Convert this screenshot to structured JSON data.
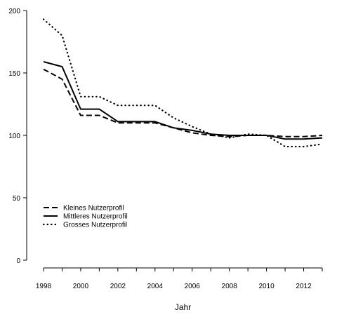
{
  "chart_data": {
    "type": "line",
    "title": "",
    "xlabel": "Jahr",
    "ylabel": "",
    "xlim": [
      1998,
      2013
    ],
    "ylim": [
      0,
      200
    ],
    "x_ticks": [
      1998,
      2000,
      2002,
      2004,
      2006,
      2008,
      2010,
      2012
    ],
    "y_ticks": [
      0,
      50,
      100,
      150,
      200
    ],
    "grid": false,
    "legend_position": "left",
    "x": [
      1998,
      1999,
      2000,
      2001,
      2002,
      2003,
      2004,
      2005,
      2006,
      2007,
      2008,
      2009,
      2010,
      2011,
      2012,
      2013
    ],
    "series": [
      {
        "name": "Kleines Nutzerprofil",
        "style": "dashed",
        "values": [
          153,
          145,
          116,
          116,
          110,
          110,
          110,
          106,
          102,
          100,
          99,
          100,
          100,
          99,
          99,
          100
        ]
      },
      {
        "name": "Mittleres Nutzerprofil",
        "style": "solid",
        "values": [
          159,
          155,
          121,
          121,
          111,
          111,
          111,
          106,
          104,
          101,
          100,
          100,
          100,
          97,
          97,
          98
        ]
      },
      {
        "name": "Grosses Nutzerprofil",
        "style": "dotted",
        "values": [
          193,
          180,
          131,
          131,
          124,
          124,
          124,
          114,
          107,
          101,
          98,
          101,
          100,
          91,
          91,
          93
        ]
      }
    ]
  }
}
